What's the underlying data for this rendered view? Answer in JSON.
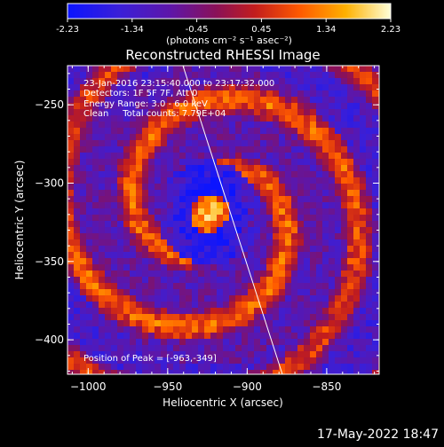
{
  "window": {
    "background": "#000000"
  },
  "colorbar": {
    "ticks": [
      "-2.23",
      "-1.34",
      "-0.45",
      "0.45",
      "1.34",
      "2.23"
    ],
    "label": "(photons cm⁻² s⁻¹ asec⁻²)",
    "colormap": "blue → purple → red → orange → yellow → white"
  },
  "plot": {
    "title": "Reconstructed RHESSI Image",
    "xlabel": "Heliocentric X (arcsec)",
    "ylabel": "Heliocentric Y (arcsec)",
    "x_ticks": [
      "−1000",
      "−950",
      "−900",
      "−850"
    ],
    "y_ticks": [
      "−250",
      "−300",
      "−350",
      "−400"
    ],
    "info_lines": [
      "23-Jan-2016 23:15:40.000 to 23:17:32.000",
      "Detectors: 1F 5F 7F, Att 0",
      "Energy Range: 3.0 - 6.0 keV",
      "Clean     Total counts: 7.79E+04"
    ],
    "peak_label": "Position of Peak = [-963,-349]"
  },
  "footer": {
    "timestamp": "17-May-2022 18:47"
  }
}
